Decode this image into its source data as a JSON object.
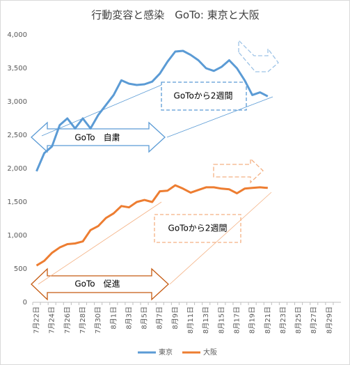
{
  "chart_data": {
    "type": "line",
    "title": "行動変容と感染　GoTo: 東京と大阪",
    "categories": [
      "7月22日",
      null,
      "7月24日",
      null,
      "7月26日",
      null,
      "7月28日",
      null,
      "7月30日",
      null,
      "8月1日",
      null,
      "8月3日",
      null,
      "8月5日",
      null,
      "8月7日",
      null,
      "8月9日",
      null,
      "8月11日",
      null,
      "8月13日",
      null,
      "8月15日",
      null,
      "8月17日",
      null,
      "8月19日",
      null,
      "8月21日",
      null,
      "8月23日",
      null,
      "8月25日",
      null,
      "8月27日",
      null,
      "8月29日",
      null
    ],
    "series": [
      {
        "name": "東京",
        "color": "#5b9bd5",
        "values": [
          1960,
          2230,
          2330,
          2650,
          2750,
          2600,
          2750,
          2600,
          2800,
          2950,
          3100,
          3320,
          3270,
          3250,
          3260,
          3300,
          3420,
          3600,
          3750,
          3760,
          3700,
          3620,
          3500,
          3460,
          3520,
          3620,
          3500,
          3320,
          3100,
          3140,
          3080,
          null,
          null,
          null,
          null,
          null,
          null,
          null,
          null,
          null
        ]
      },
      {
        "name": "大阪",
        "color": "#ed7d31",
        "values": [
          550,
          620,
          740,
          820,
          870,
          880,
          910,
          1080,
          1140,
          1260,
          1330,
          1440,
          1420,
          1500,
          1530,
          1500,
          1660,
          1670,
          1750,
          1700,
          1640,
          1680,
          1720,
          1720,
          1700,
          1690,
          1630,
          1700,
          1710,
          1720,
          1710,
          null,
          null,
          null,
          null,
          null,
          null,
          null,
          null,
          null
        ]
      }
    ],
    "ylim": [
      0,
      4000
    ],
    "yticks": [
      0,
      500,
      {
        "value": 1000,
        "label": "1,000"
      },
      {
        "value": 1500,
        "label": "1,500"
      },
      {
        "value": 2000,
        "label": "2,000"
      },
      {
        "value": 2500,
        "label": "2,500"
      },
      {
        "value": 3000,
        "label": "3,000"
      },
      {
        "value": 3500,
        "label": "3,500"
      },
      {
        "value": 4000,
        "label": "4,000"
      }
    ],
    "grid": false,
    "legend": "bottom",
    "annotations": [
      "GoTo　自粛",
      "GoToから2週間",
      "GoToから2週間",
      "GoTo　促進"
    ]
  }
}
